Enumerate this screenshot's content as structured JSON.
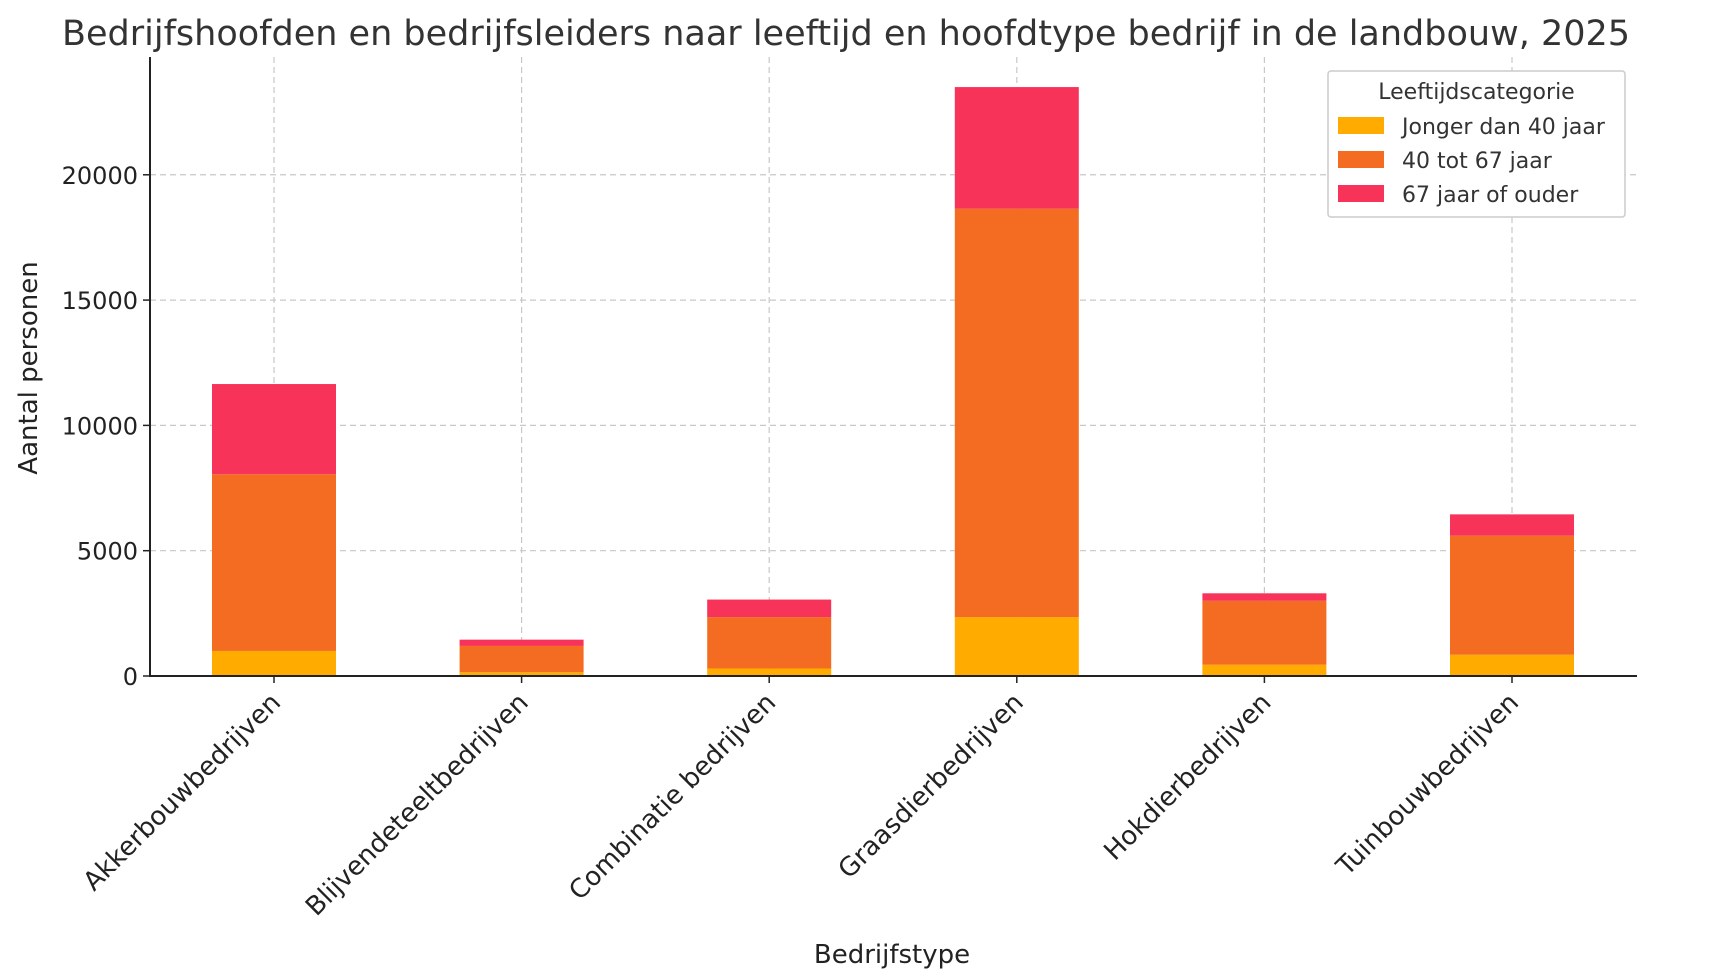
{
  "chart_data": {
    "type": "bar",
    "stacked": true,
    "title": "Bedrijfshoofden en bedrijfsleiders naar leeftijd en hoofdtype bedrijf in de landbouw, 2025",
    "xlabel": "Bedrijfstype",
    "ylabel": "Aantal personen",
    "ylim": [
      0,
      24700
    ],
    "yticks": [
      0,
      5000,
      10000,
      15000,
      20000
    ],
    "grid": true,
    "legend": {
      "title": "Leeftijdscategorie",
      "placement": "top-right"
    },
    "categories": [
      "Akkerbouwbedrijven",
      "Blijvendeteeltbedrijven",
      "Combinatie bedrijven",
      "Graasdierbedrijven",
      "Hokdierbedrijven",
      "Tuinbouwbedrijven"
    ],
    "series": [
      {
        "name": "Jonger dan 40 jaar",
        "color": "#FFAB00",
        "values": [
          1000,
          150,
          300,
          2350,
          450,
          850
        ]
      },
      {
        "name": "40 tot 67 jaar",
        "color": "#F36C21",
        "values": [
          7050,
          1050,
          2050,
          16300,
          2550,
          4750
        ]
      },
      {
        "name": "67 jaar of ouder",
        "color": "#F7335A",
        "values": [
          3600,
          250,
          700,
          4850,
          300,
          850
        ]
      }
    ]
  }
}
